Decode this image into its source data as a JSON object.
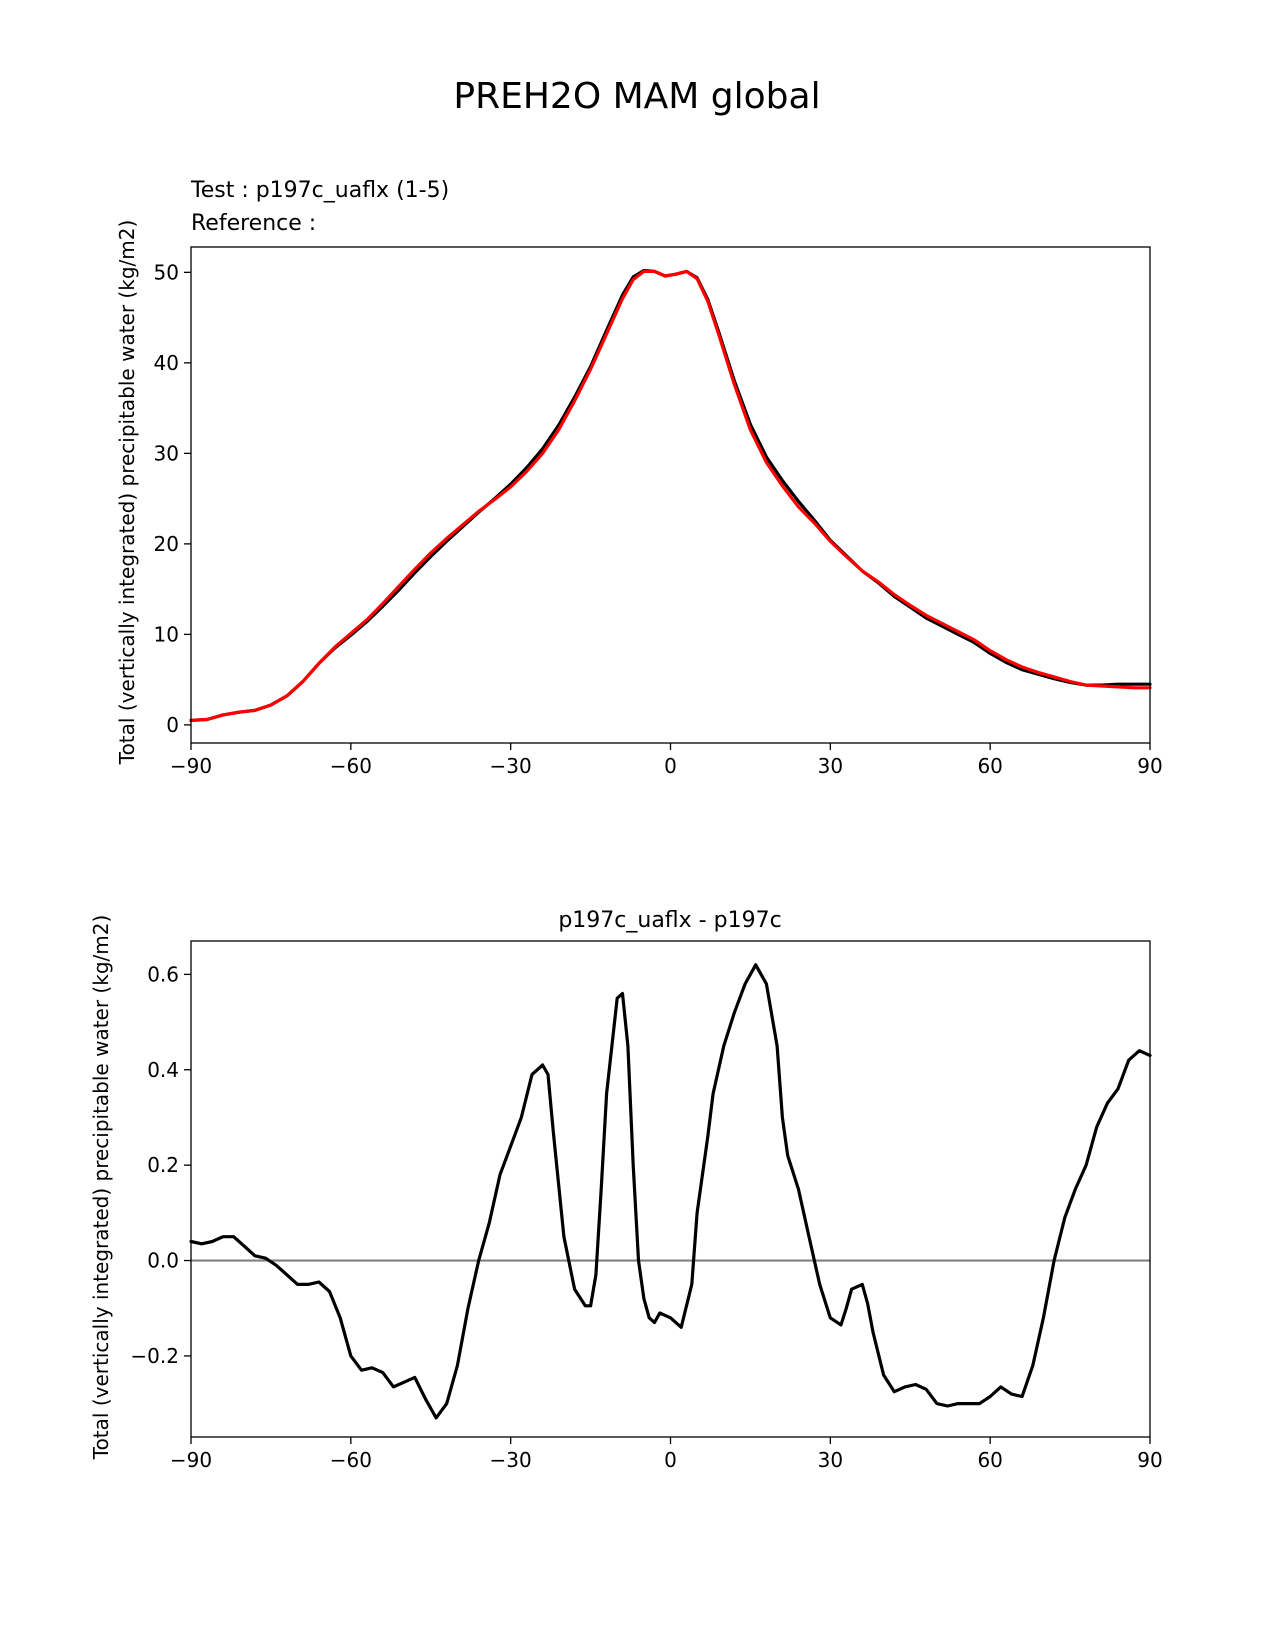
{
  "suptitle": "PREH2O MAM global",
  "colors": {
    "test": "#000000",
    "reference": "#ff0000",
    "zero_line": "#808080"
  },
  "chart_data": [
    {
      "type": "line",
      "test_label": "Test : p197c_uaflx (1-5)",
      "reference_label": "Reference :",
      "ylabel": "Total (vertically integrated) precipitable water (kg/m2)",
      "xlim": [
        -90,
        90
      ],
      "ylim": [
        -2,
        52.8
      ],
      "xticks": [
        -90,
        -60,
        -30,
        0,
        30,
        60,
        90
      ],
      "xtick_labels": [
        "−90",
        "−60",
        "−30",
        "0",
        "30",
        "60",
        "90"
      ],
      "yticks": [
        0,
        10,
        20,
        30,
        40,
        50
      ],
      "ytick_labels": [
        "0",
        "10",
        "20",
        "30",
        "40",
        "50"
      ],
      "series": [
        {
          "name": "test",
          "x": [
            -90,
            -87,
            -84,
            -81,
            -78,
            -75,
            -72,
            -69,
            -66,
            -63,
            -60,
            -57,
            -54,
            -51,
            -48,
            -45,
            -42,
            -39,
            -36,
            -33,
            -30,
            -27,
            -24,
            -21,
            -18,
            -15,
            -12,
            -9,
            -7,
            -5,
            -3,
            -1,
            1,
            3,
            5,
            7,
            9,
            12,
            15,
            18,
            21,
            24,
            27,
            30,
            33,
            36,
            39,
            42,
            45,
            48,
            51,
            54,
            57,
            60,
            63,
            66,
            69,
            72,
            75,
            78,
            81,
            84,
            87,
            90
          ],
          "y": [
            0.5,
            0.6,
            1.1,
            1.4,
            1.6,
            2.2,
            3.2,
            4.8,
            6.8,
            8.5,
            9.9,
            11.4,
            13.1,
            14.9,
            16.8,
            18.6,
            20.3,
            21.9,
            23.5,
            25.0,
            26.6,
            28.4,
            30.5,
            33.1,
            36.2,
            39.6,
            43.6,
            47.5,
            49.5,
            50.2,
            50.1,
            49.6,
            49.8,
            50.1,
            49.4,
            47.0,
            43.5,
            38.0,
            33.2,
            29.6,
            27.0,
            24.7,
            22.6,
            20.4,
            18.7,
            17.0,
            15.7,
            14.2,
            13.0,
            11.8,
            10.9,
            10.0,
            9.1,
            7.9,
            6.9,
            6.1,
            5.6,
            5.1,
            4.7,
            4.4,
            4.4,
            4.5,
            4.5,
            4.5
          ]
        },
        {
          "name": "reference",
          "x": [
            -90,
            -87,
            -84,
            -81,
            -78,
            -75,
            -72,
            -69,
            -66,
            -63,
            -60,
            -57,
            -54,
            -51,
            -48,
            -45,
            -42,
            -39,
            -36,
            -33,
            -30,
            -27,
            -24,
            -21,
            -18,
            -15,
            -12,
            -9,
            -7,
            -5,
            -3,
            -1,
            1,
            3,
            5,
            7,
            9,
            12,
            15,
            18,
            21,
            24,
            27,
            30,
            33,
            36,
            39,
            42,
            45,
            48,
            51,
            54,
            57,
            60,
            63,
            66,
            69,
            72,
            75,
            78,
            81,
            84,
            87,
            90
          ],
          "y": [
            0.5,
            0.6,
            1.1,
            1.4,
            1.6,
            2.2,
            3.2,
            4.8,
            6.8,
            8.6,
            10.1,
            11.6,
            13.4,
            15.3,
            17.2,
            19.0,
            20.6,
            22.1,
            23.6,
            24.9,
            26.3,
            28.0,
            30.0,
            32.6,
            35.8,
            39.3,
            43.2,
            47.1,
            49.2,
            50.1,
            50.1,
            49.6,
            49.8,
            50.1,
            49.3,
            46.8,
            43.2,
            37.6,
            32.6,
            29.0,
            26.4,
            24.1,
            22.3,
            20.3,
            18.6,
            17.0,
            15.8,
            14.4,
            13.2,
            12.1,
            11.2,
            10.3,
            9.4,
            8.2,
            7.2,
            6.4,
            5.8,
            5.3,
            4.8,
            4.4,
            4.3,
            4.2,
            4.1,
            4.1
          ]
        }
      ]
    },
    {
      "type": "line",
      "title": "p197c_uaflx - p197c",
      "ylabel": "Total (vertically integrated) precipitable water (kg/m2)",
      "xlim": [
        -90,
        90
      ],
      "ylim": [
        -0.37,
        0.67
      ],
      "xticks": [
        -90,
        -60,
        -30,
        0,
        30,
        60,
        90
      ],
      "xtick_labels": [
        "−90",
        "−60",
        "−30",
        "0",
        "30",
        "60",
        "90"
      ],
      "yticks": [
        -0.2,
        0.0,
        0.2,
        0.4,
        0.6
      ],
      "ytick_labels": [
        "−0.2",
        "0.0",
        "0.2",
        "0.4",
        "0.6"
      ],
      "zero_line": 0,
      "series": [
        {
          "name": "difference",
          "x": [
            -90,
            -88,
            -86,
            -84,
            -82,
            -80,
            -78,
            -76,
            -74,
            -72,
            -70,
            -68,
            -66,
            -64,
            -62,
            -60,
            -58,
            -56,
            -54,
            -52,
            -50,
            -48,
            -46,
            -44,
            -42,
            -40,
            -38,
            -36,
            -34,
            -32,
            -30,
            -28,
            -26,
            -24,
            -23,
            -22,
            -20,
            -18,
            -16,
            -15,
            -14,
            -13,
            -12,
            -10,
            -9,
            -8,
            -7,
            -6,
            -5,
            -4,
            -3,
            -2,
            0,
            2,
            4,
            5,
            7,
            8,
            10,
            12,
            14,
            16,
            18,
            20,
            21,
            22,
            24,
            26,
            28,
            30,
            32,
            33,
            34,
            36,
            37,
            38,
            40,
            42,
            44,
            46,
            48,
            50,
            52,
            54,
            56,
            58,
            60,
            62,
            64,
            66,
            68,
            70,
            72,
            74,
            76,
            78,
            80,
            82,
            84,
            86,
            88,
            90
          ],
          "y": [
            0.04,
            0.035,
            0.04,
            0.05,
            0.05,
            0.03,
            0.01,
            0.005,
            -0.01,
            -0.03,
            -0.05,
            -0.05,
            -0.045,
            -0.065,
            -0.12,
            -0.2,
            -0.23,
            -0.225,
            -0.235,
            -0.265,
            -0.255,
            -0.245,
            -0.29,
            -0.33,
            -0.3,
            -0.22,
            -0.1,
            0.0,
            0.08,
            0.18,
            0.24,
            0.3,
            0.39,
            0.41,
            0.39,
            0.27,
            0.05,
            -0.06,
            -0.095,
            -0.095,
            -0.03,
            0.15,
            0.35,
            0.55,
            0.56,
            0.45,
            0.2,
            0.0,
            -0.08,
            -0.12,
            -0.13,
            -0.11,
            -0.12,
            -0.14,
            -0.05,
            0.1,
            0.26,
            0.35,
            0.45,
            0.52,
            0.58,
            0.62,
            0.58,
            0.45,
            0.3,
            0.22,
            0.15,
            0.05,
            -0.05,
            -0.12,
            -0.135,
            -0.1,
            -0.06,
            -0.05,
            -0.09,
            -0.15,
            -0.24,
            -0.275,
            -0.265,
            -0.26,
            -0.27,
            -0.3,
            -0.305,
            -0.3,
            -0.3,
            -0.3,
            -0.285,
            -0.265,
            -0.28,
            -0.285,
            -0.22,
            -0.12,
            0.0,
            0.09,
            0.15,
            0.2,
            0.28,
            0.33,
            0.36,
            0.42,
            0.44,
            0.43
          ]
        }
      ]
    }
  ]
}
